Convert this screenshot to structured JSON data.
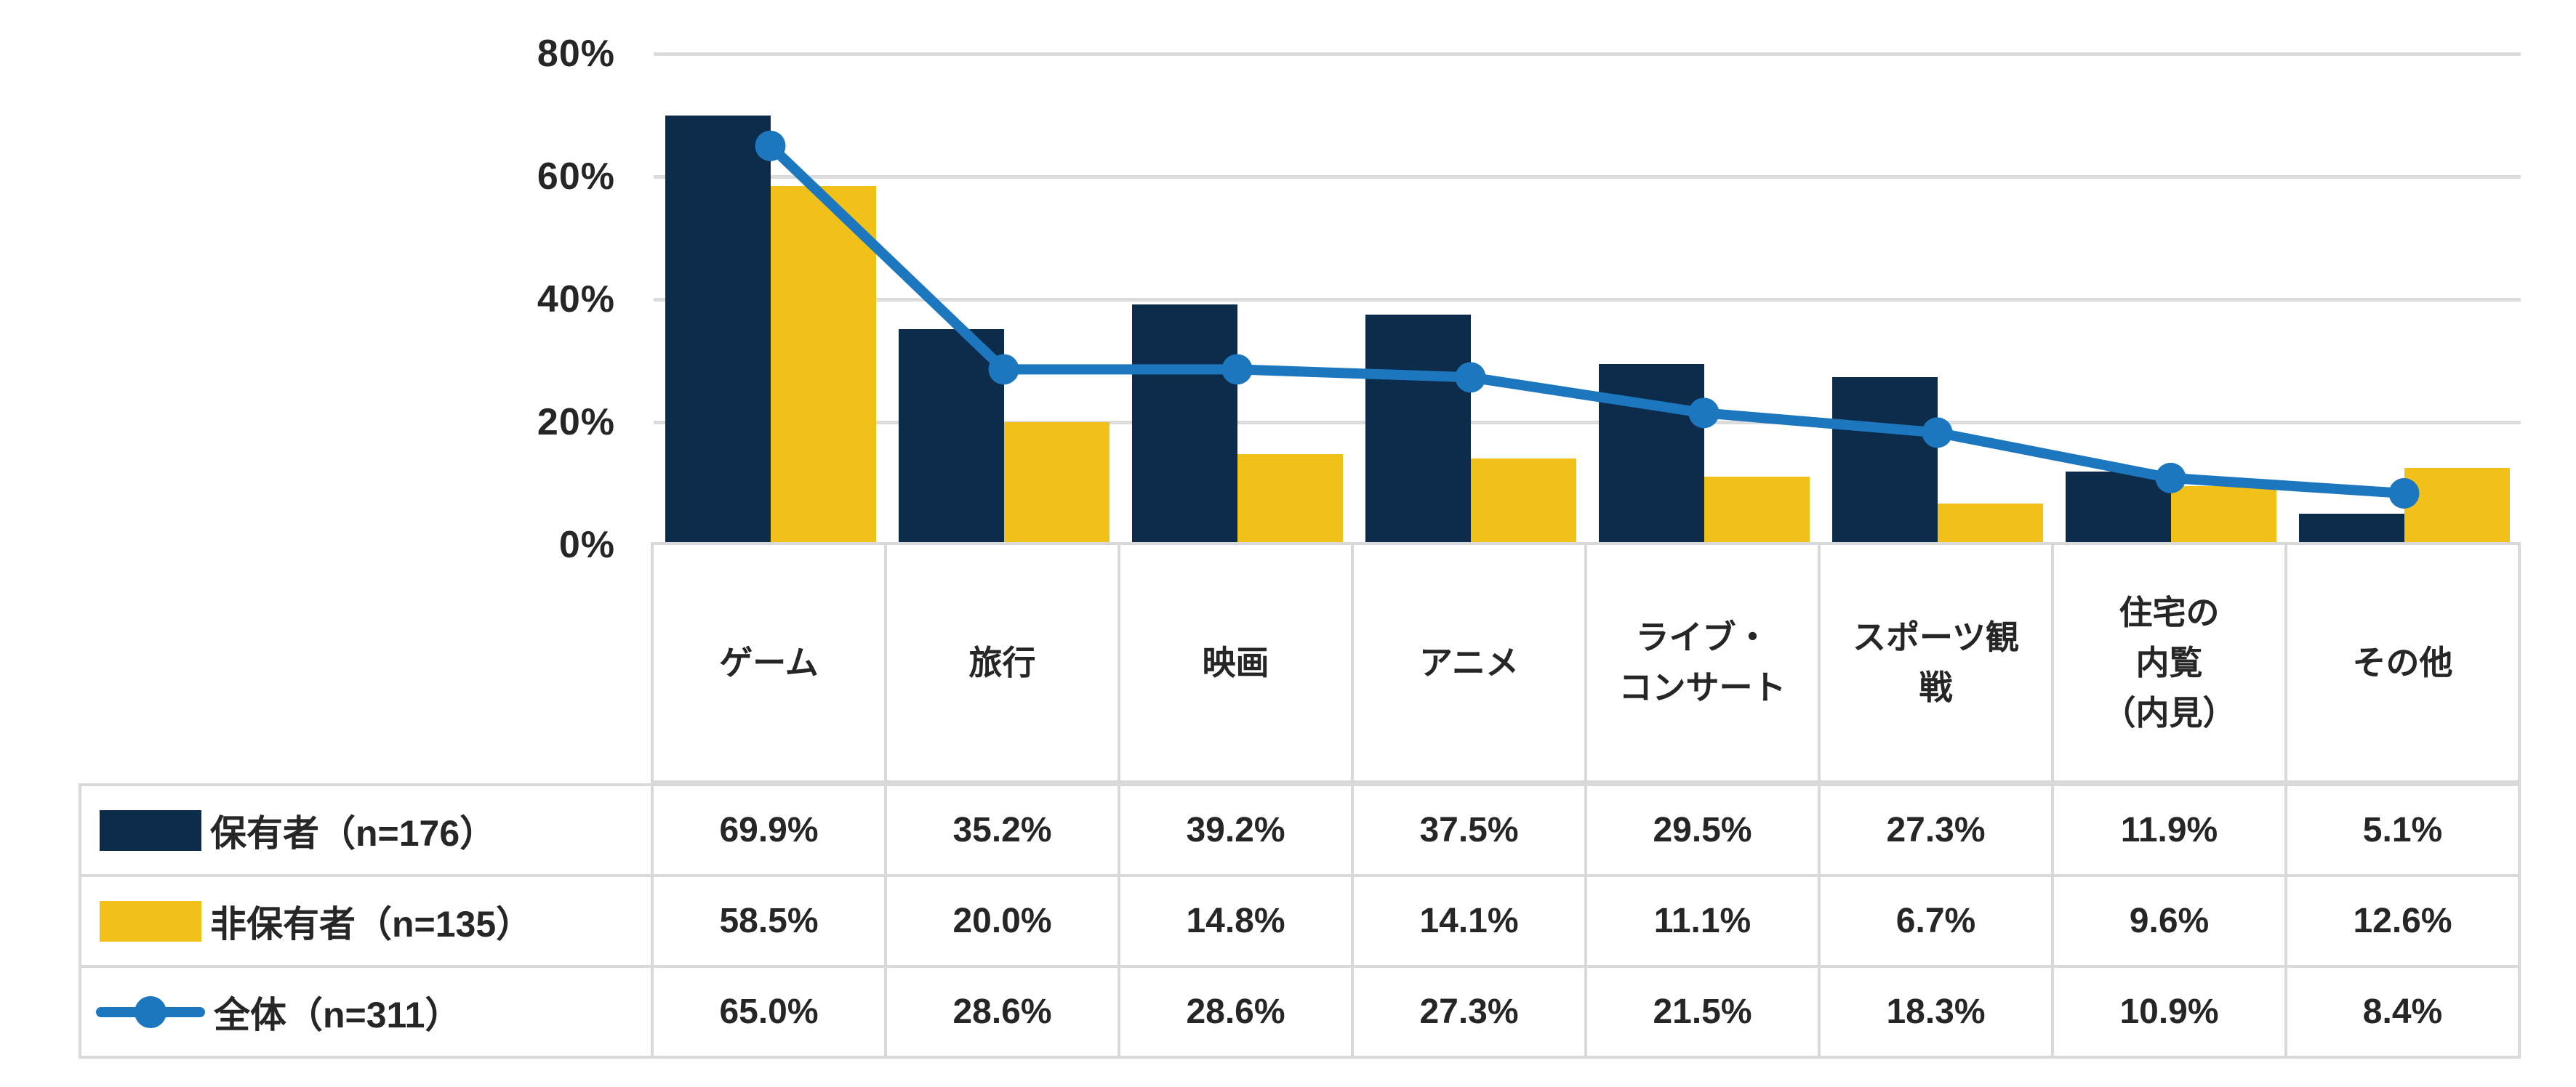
{
  "chart_data": {
    "type": "bar",
    "subtype": "grouped-bars-with-line-overlay",
    "categories": [
      "ゲーム",
      "旅行",
      "映画",
      "アニメ",
      "ライブ・\nコンサート",
      "スポーツ観\n戦",
      "住宅の\n内覧\n（内見）",
      "その他"
    ],
    "series": [
      {
        "name": "保有者（n=176）",
        "type": "bar",
        "color": "#0D2B4B",
        "values": [
          69.9,
          35.2,
          39.2,
          37.5,
          29.5,
          27.3,
          11.9,
          5.1
        ]
      },
      {
        "name": "非保有者（n=135）",
        "type": "bar",
        "color": "#F1C019",
        "values": [
          58.5,
          20.0,
          14.8,
          14.1,
          11.1,
          6.7,
          9.6,
          12.6
        ]
      },
      {
        "name": "全体（n=311）",
        "type": "line",
        "color": "#1C77BE",
        "values": [
          65.0,
          28.6,
          28.6,
          27.3,
          21.5,
          18.3,
          10.9,
          8.4
        ]
      }
    ],
    "title": "",
    "xlabel": "",
    "ylabel": "",
    "ylim": [
      0,
      80
    ],
    "yticks": [
      {
        "value": 80,
        "label": "80%"
      },
      {
        "value": 60,
        "label": "60%"
      },
      {
        "value": 40,
        "label": "40%"
      },
      {
        "value": 20,
        "label": "20%"
      },
      {
        "value": 0,
        "label": "0%"
      }
    ],
    "grid": true,
    "value_suffix": "%",
    "legend_position": "table-left-column"
  },
  "colors": {
    "holder_bar": "#0D2B4B",
    "non_holder_bar": "#F1C019",
    "total_line": "#1C77BE",
    "gridline": "#DCDCDC",
    "table_border": "#D9D9D9",
    "text": "#262626",
    "background": "#FFFFFF"
  }
}
